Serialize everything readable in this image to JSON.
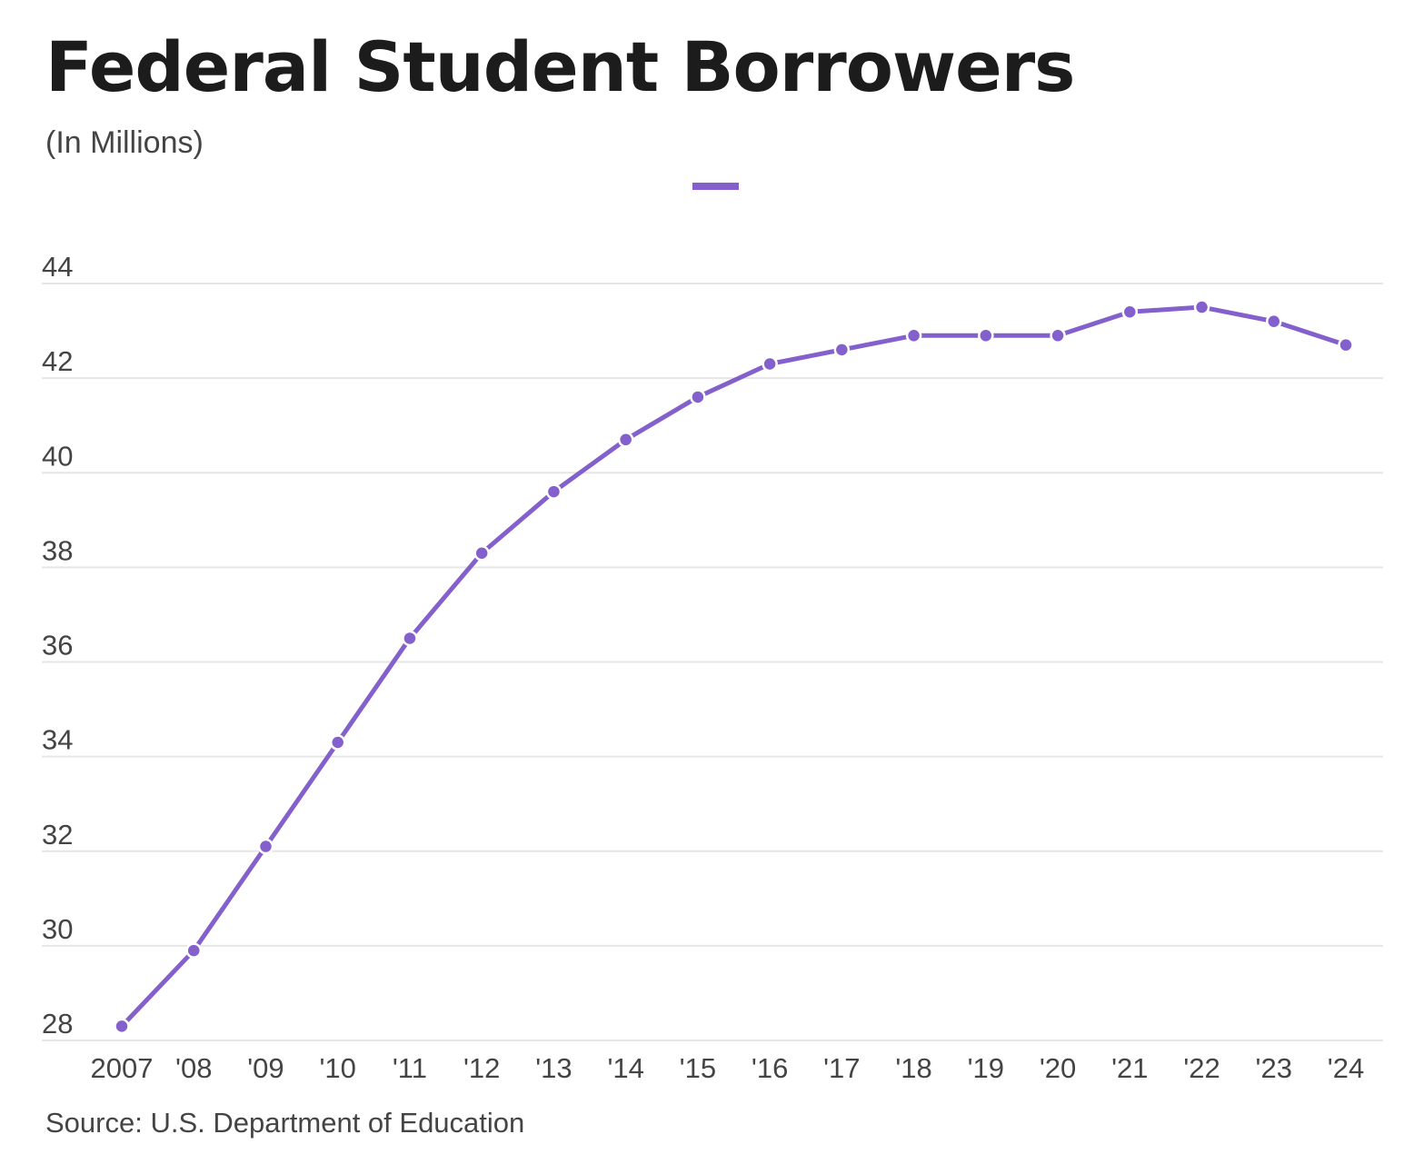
{
  "title": "Federal Student Borrowers",
  "subtitle": "(In Millions)",
  "source": "Source: U.S. Department of Education",
  "colors": {
    "series": "#8460cc",
    "grid": "#e6e6e6",
    "text": "#444444",
    "title": "#1c1c1c"
  },
  "chart_data": {
    "type": "line",
    "x": [
      "2007",
      "'08",
      "'09",
      "'10",
      "'11",
      "'12",
      "'13",
      "'14",
      "'15",
      "'16",
      "'17",
      "'18",
      "'19",
      "'20",
      "'21",
      "'22",
      "'23",
      "'24"
    ],
    "series": [
      {
        "values": [
          28.3,
          29.9,
          32.1,
          34.3,
          36.5,
          38.3,
          39.6,
          40.7,
          41.6,
          42.3,
          42.6,
          42.9,
          42.9,
          42.9,
          43.4,
          43.5,
          43.2,
          42.7
        ]
      }
    ],
    "yticks": [
      "28",
      "30",
      "32",
      "34",
      "36",
      "38",
      "40",
      "42",
      "44"
    ],
    "ylim": [
      28,
      44
    ],
    "grid": true,
    "legend": "top-center"
  }
}
